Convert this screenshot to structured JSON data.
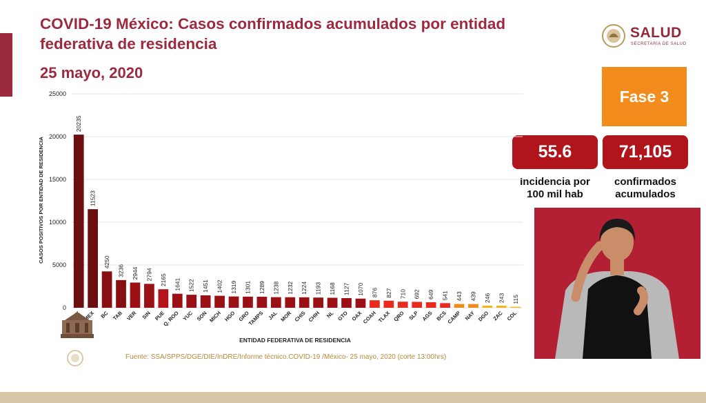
{
  "header": {
    "title": "COVID-19 México: Casos confirmados acumulados por entidad federativa de residencia",
    "date": "25 mayo, 2020"
  },
  "logo": {
    "name": "SALUD",
    "subtitle": "SECRETARÍA DE SALUD"
  },
  "panel": {
    "phase": "Fase 3",
    "incidence_value": "55.6",
    "incidence_label": "Incidencia por 100 mil hab",
    "confirmed_value": "71,105",
    "confirmed_label": "confirmados acumulados"
  },
  "source": "Fuente: SSA/SPPS/DGE/DIE/InDRE/Informe técnico.COVID-19 /México- 25 mayo, 2020 (corte 13:00hrs)",
  "chart_data": {
    "type": "bar",
    "xlabel": "ENTIDAD FEDERATIVA DE RESIDENCIA",
    "ylabel": "CASOS POSITIVOS POR ENTIDAD DE RESIDENCIA",
    "ylim": [
      0,
      25000
    ],
    "yticks": [
      0,
      5000,
      10000,
      15000,
      20000,
      25000
    ],
    "grid": true,
    "categories": [
      "CDMX",
      "MEX",
      "BC",
      "TAB",
      "VER",
      "SIN",
      "PUE",
      "Q. ROO",
      "YUC",
      "SON",
      "MICH",
      "HGO",
      "GRO",
      "TAMPS",
      "JAL",
      "MOR",
      "CHIS",
      "CHIH",
      "NL",
      "GTO",
      "OAX",
      "COAH",
      "TLAX",
      "QRO",
      "SLP",
      "AGS",
      "BCS",
      "CAMP",
      "NAY",
      "DGO",
      "ZAC",
      "COL"
    ],
    "values": [
      20235,
      11523,
      4250,
      3236,
      2944,
      2794,
      2165,
      1641,
      1522,
      1451,
      1402,
      1319,
      1301,
      1289,
      1238,
      1232,
      1224,
      1193,
      1168,
      1127,
      1070,
      876,
      827,
      710,
      692,
      649,
      541,
      443,
      439,
      246,
      243,
      115
    ],
    "colors": [
      "#6b0f10",
      "#6b0f10",
      "#870f12",
      "#870f12",
      "#9b1015",
      "#9b1015",
      "#b3141b",
      "#9b1015",
      "#9b1015",
      "#9b1015",
      "#9b1015",
      "#9b1015",
      "#9b1015",
      "#9b1015",
      "#9b1015",
      "#9b1015",
      "#9b1015",
      "#9b1015",
      "#9b1015",
      "#9b1015",
      "#9b1015",
      "#e82a1f",
      "#e82a1f",
      "#e82a1f",
      "#e82a1f",
      "#e82a1f",
      "#e82a1f",
      "#f08a1a",
      "#f08a1a",
      "#f3b51c",
      "#f3b51c",
      "#f3b51c"
    ]
  }
}
